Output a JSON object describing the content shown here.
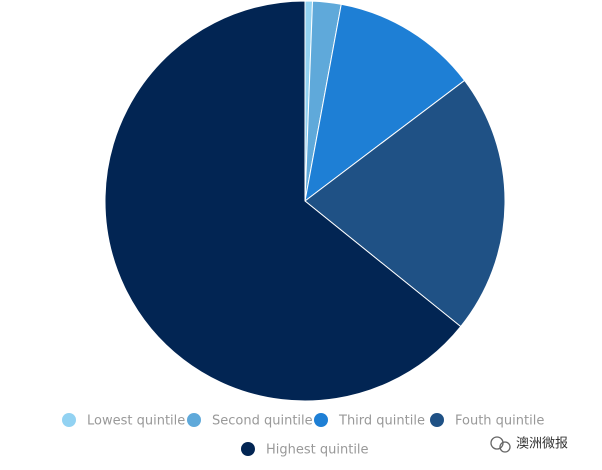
{
  "chart_data": {
    "type": "pie",
    "categories": [
      "Lowest quintile",
      "Second quintile",
      "Third quintile",
      "Fouth quintile",
      "Highest quintile"
    ],
    "values": [
      0.6,
      2.3,
      11.8,
      21.1,
      64.2
    ],
    "colors": [
      "#92d2f2",
      "#5fa9da",
      "#1e7fd5",
      "#1f5185",
      "#022553"
    ],
    "legend": "bottom",
    "watermark": "澳洲微报"
  }
}
